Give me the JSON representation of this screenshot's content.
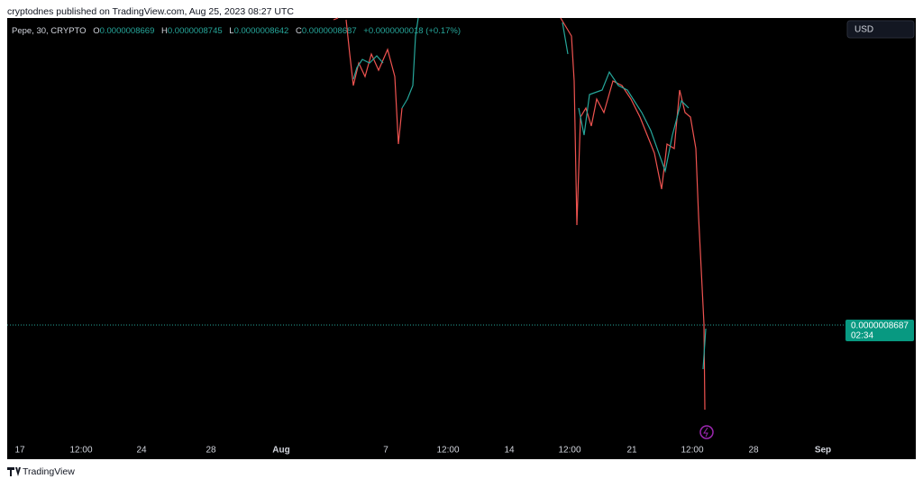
{
  "header": {
    "title": "cryptodnes published on TradingView.com, Aug 25, 2023 08:27 UTC"
  },
  "legend": {
    "symbol": "Pepe, 30, CRYPTO",
    "o_label": "O",
    "o": "0.0000008669",
    "h_label": "H",
    "h": "0.0000008745",
    "l_label": "L",
    "l": "0.0000008642",
    "c_label": "C",
    "c": "0.0000008687",
    "change": "+0.0000000018 (+0.17%)"
  },
  "currency": "USD",
  "price_label": {
    "price": "0.0000008687",
    "countdown": "02:34"
  },
  "x_axis": [
    "17",
    "12:00",
    "24",
    "28",
    "Aug",
    "7",
    "12:00",
    "14",
    "12:00",
    "21",
    "12:00",
    "28",
    "Sep"
  ],
  "footer": {
    "brand": "TradingView"
  }
}
